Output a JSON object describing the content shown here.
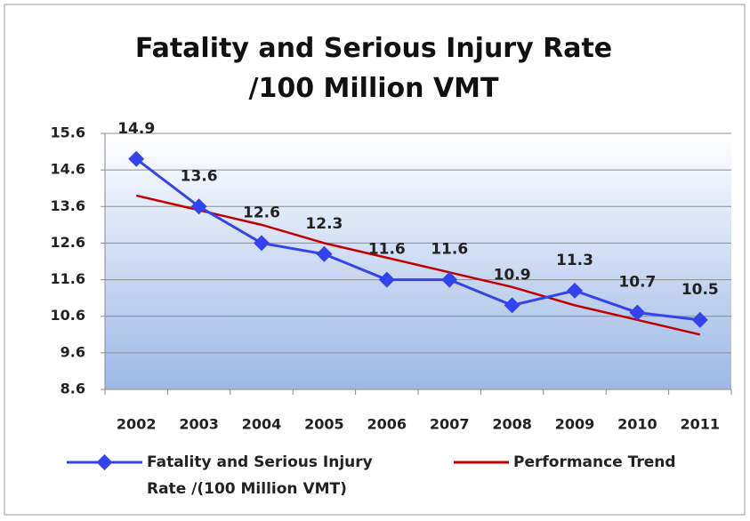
{
  "chart_data": {
    "type": "line",
    "title": "Fatality and Serious Injury Rate /100 Million VMT",
    "categories": [
      "2002",
      "2003",
      "2004",
      "2005",
      "2006",
      "2007",
      "2008",
      "2009",
      "2010",
      "2011"
    ],
    "series": [
      {
        "name": "Fatality and Serious Injury Rate /(100 Million VMT)",
        "color": "#3344ee",
        "marker": "diamond",
        "data_labels": true,
        "values": [
          14.9,
          13.6,
          12.6,
          12.3,
          11.6,
          11.6,
          10.9,
          11.3,
          10.7,
          10.5
        ]
      },
      {
        "name": "Performance Trend",
        "color": "#c00000",
        "data_labels": false,
        "values": [
          13.9,
          13.5,
          13.1,
          12.6,
          12.2,
          11.8,
          11.4,
          10.9,
          10.5,
          10.1
        ]
      }
    ],
    "ylim": [
      8.6,
      15.6
    ],
    "yticks": [
      8.6,
      9.6,
      10.6,
      11.6,
      12.6,
      13.6,
      14.6,
      15.6
    ],
    "grid": true,
    "legend": "bottom"
  }
}
